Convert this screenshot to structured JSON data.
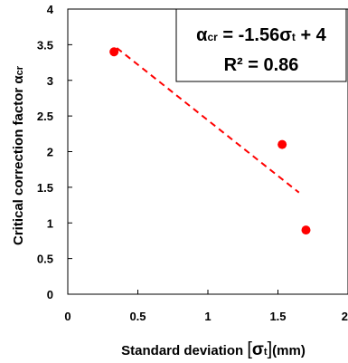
{
  "chart_data": {
    "type": "scatter",
    "xlabel": {
      "prefix": "Standard deviation ",
      "bracket_open": "[",
      "symbol": "σ",
      "subscript": "t",
      "bracket_close": "]",
      "unit": "(mm)"
    },
    "ylabel": {
      "text": "Critical correction factor ",
      "symbol": "α",
      "subscript": "cr"
    },
    "xlim": [
      0,
      2
    ],
    "ylim": [
      0,
      4
    ],
    "x_ticks": [
      "0",
      "0.5",
      "1",
      "1.5",
      "2"
    ],
    "y_ticks": [
      "0",
      "0.5",
      "1",
      "1.5",
      "2",
      "2.5",
      "3",
      "3.5",
      "4"
    ],
    "grid": false,
    "series": [
      {
        "points": [
          {
            "x": 0.33,
            "y": 3.4
          },
          {
            "x": 1.53,
            "y": 2.1
          },
          {
            "x": 1.7,
            "y": 0.9
          }
        ],
        "color": "#ff0000"
      }
    ],
    "trendline": {
      "slope": -1.56,
      "intercept": 4,
      "x_range": [
        0.35,
        1.65
      ],
      "style": "dashed",
      "color": "#ff0000"
    },
    "annotation": {
      "line1": {
        "lhs_symbol": "α",
        "lhs_subscript": "cr",
        "middle": " = -1.56",
        "var_symbol": "σ",
        "var_subscript": "t",
        "tail": " + 4"
      },
      "line2": "R² = 0.86",
      "position": "top-right"
    }
  }
}
